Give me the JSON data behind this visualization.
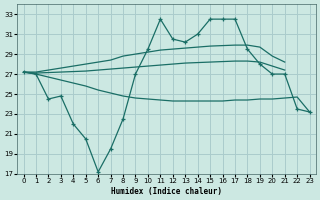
{
  "xlabel": "Humidex (Indice chaleur)",
  "background_color": "#cce8e2",
  "grid_color": "#aacccc",
  "line_color": "#1a6e66",
  "ylim": [
    17,
    34
  ],
  "xlim": [
    -0.5,
    23.5
  ],
  "yticks": [
    17,
    19,
    21,
    23,
    25,
    27,
    29,
    31,
    33
  ],
  "xticks": [
    0,
    1,
    2,
    3,
    4,
    5,
    6,
    7,
    8,
    9,
    10,
    11,
    12,
    13,
    14,
    15,
    16,
    17,
    18,
    19,
    20,
    21,
    22,
    23
  ],
  "jagged_x": [
    0,
    1,
    2,
    3,
    4,
    5,
    6,
    7,
    8,
    9,
    10,
    11,
    12,
    13,
    14,
    15,
    16,
    17,
    18,
    19,
    20,
    21,
    22,
    23
  ],
  "jagged_y": [
    27.2,
    27.0,
    24.5,
    24.8,
    22.0,
    20.5,
    17.2,
    19.5,
    22.5,
    27.0,
    29.5,
    32.5,
    30.5,
    30.2,
    31.0,
    32.5,
    32.5,
    32.5,
    29.5,
    28.0,
    27.0,
    27.0,
    23.5,
    23.2
  ],
  "upper_x": [
    0,
    1,
    2,
    3,
    4,
    5,
    6,
    7,
    8,
    9,
    10,
    11,
    12,
    13,
    14,
    15,
    16,
    17,
    18,
    19,
    20,
    21
  ],
  "upper_y": [
    27.2,
    27.2,
    27.4,
    27.6,
    27.8,
    28.0,
    28.2,
    28.4,
    28.8,
    29.0,
    29.2,
    29.4,
    29.5,
    29.6,
    29.7,
    29.8,
    29.85,
    29.9,
    29.9,
    29.7,
    28.8,
    28.2
  ],
  "mid_x": [
    0,
    1,
    2,
    3,
    4,
    5,
    6,
    7,
    8,
    9,
    10,
    11,
    12,
    13,
    14,
    15,
    16,
    17,
    18,
    19,
    20,
    21
  ],
  "mid_y": [
    27.2,
    27.1,
    27.15,
    27.2,
    27.25,
    27.3,
    27.4,
    27.5,
    27.6,
    27.7,
    27.8,
    27.9,
    28.0,
    28.1,
    28.15,
    28.2,
    28.25,
    28.3,
    28.3,
    28.2,
    27.8,
    27.4
  ],
  "lower_x": [
    0,
    1,
    2,
    3,
    4,
    5,
    6,
    7,
    8,
    9,
    10,
    11,
    12,
    13,
    14,
    15,
    16,
    17,
    18,
    19,
    20,
    21,
    22,
    23
  ],
  "lower_y": [
    27.2,
    27.0,
    26.7,
    26.4,
    26.1,
    25.8,
    25.4,
    25.1,
    24.8,
    24.6,
    24.5,
    24.4,
    24.3,
    24.3,
    24.3,
    24.3,
    24.3,
    24.4,
    24.4,
    24.5,
    24.5,
    24.6,
    24.7,
    23.2
  ]
}
